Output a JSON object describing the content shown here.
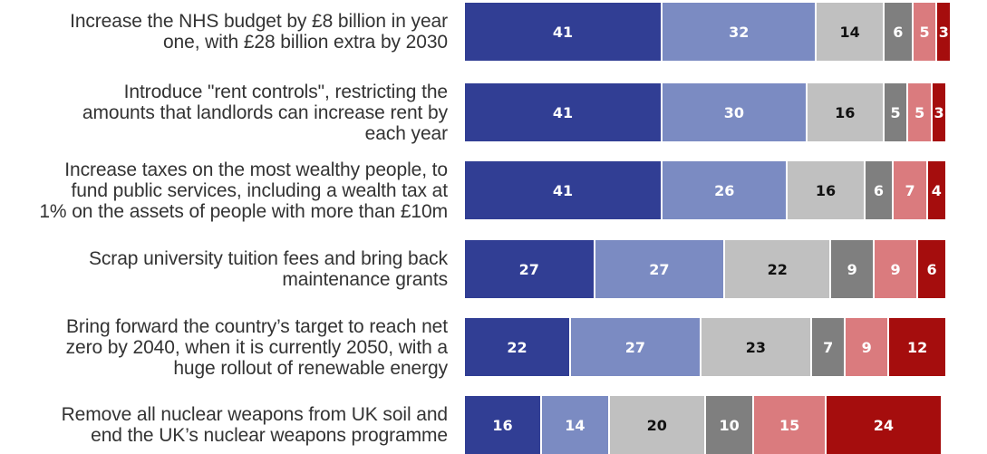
{
  "chart_data": {
    "type": "bar",
    "orientation": "horizontal",
    "stacked": true,
    "title": "",
    "xlabel": "",
    "ylabel": "",
    "xlim": [
      0,
      100
    ],
    "grid": false,
    "legend": "none",
    "categories": [
      [
        "Increase the NHS budget by £8 billion in year",
        "one, with £28 billion extra by 2030"
      ],
      [
        "Introduce \"rent controls\", restricting the",
        "amounts that landlords can increase rent by",
        "each year"
      ],
      [
        "Increase taxes on the most wealthy people, to",
        "fund public services, including a wealth tax at",
        "1% on the assets of people with more than £10m"
      ],
      [
        "Scrap university tuition fees and bring back",
        "maintenance grants"
      ],
      [
        "Bring forward the country’s target to reach net",
        "zero by 2040, when it is currently 2050, with a",
        "huge rollout of renewable energy"
      ],
      [
        "Remove all nuclear weapons from UK soil and",
        "end the UK’s nuclear weapons programme"
      ]
    ],
    "series": [
      {
        "color": "#313e94",
        "text_color": "#ffffff",
        "values": [
          41,
          41,
          41,
          27,
          22,
          16
        ]
      },
      {
        "color": "#7b8bc2",
        "text_color": "#ffffff",
        "values": [
          32,
          30,
          26,
          27,
          27,
          14
        ]
      },
      {
        "color": "#c0c0c0",
        "text_color": "#111111",
        "values": [
          14,
          16,
          16,
          22,
          23,
          20
        ]
      },
      {
        "color": "#7f7f7f",
        "text_color": "#ffffff",
        "values": [
          6,
          5,
          6,
          9,
          7,
          10
        ]
      },
      {
        "color": "#da7b7e",
        "text_color": "#ffffff",
        "values": [
          5,
          5,
          7,
          9,
          9,
          15
        ]
      },
      {
        "color": "#a50d0d",
        "text_color": "#ffffff",
        "values": [
          3,
          3,
          4,
          6,
          12,
          24
        ]
      }
    ]
  }
}
